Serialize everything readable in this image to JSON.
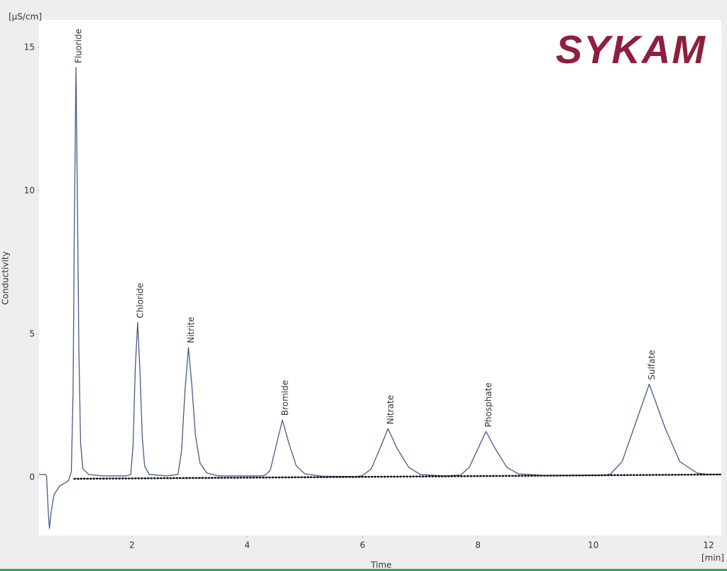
{
  "chart_data": {
    "type": "line",
    "logo": "SYKAM",
    "y_unit": "[µS/cm]",
    "y_label": "Conductivity",
    "x_label": "Time",
    "x_unit": "[min]",
    "xlim": [
      0.39,
      12.22
    ],
    "ylim": [
      -2.03,
      15.96
    ],
    "xticks": [
      2,
      4,
      6,
      8,
      10,
      12
    ],
    "yticks": [
      0,
      5,
      10,
      15
    ],
    "series": [
      {
        "color": "#4a5a8a",
        "x": [
          0.39,
          0.5,
          0.52,
          0.55,
          0.57,
          0.6,
          0.65,
          0.75,
          0.9,
          0.95,
          0.98,
          1.0,
          1.03,
          1.06,
          1.08,
          1.11,
          1.15,
          1.25,
          1.5,
          1.9,
          1.98,
          2.02,
          2.06,
          2.1,
          2.14,
          2.18,
          2.22,
          2.3,
          2.6,
          2.8,
          2.86,
          2.92,
          2.98,
          3.04,
          3.1,
          3.18,
          3.3,
          3.5,
          4.2,
          4.3,
          4.4,
          4.5,
          4.61,
          4.72,
          4.85,
          5.0,
          5.3,
          5.9,
          6.0,
          6.15,
          6.3,
          6.44,
          6.6,
          6.8,
          7.0,
          7.4,
          7.7,
          7.85,
          8.0,
          8.14,
          8.3,
          8.5,
          8.7,
          9.2,
          10.2,
          10.3,
          10.5,
          10.7,
          10.97,
          11.25,
          11.5,
          11.8,
          12.0,
          12.22
        ],
        "values": [
          0.1,
          0.1,
          0.05,
          -1.2,
          -1.78,
          -1.2,
          -0.6,
          -0.3,
          -0.12,
          0.2,
          3.0,
          8.3,
          14.3,
          8.7,
          4.5,
          1.2,
          0.3,
          0.1,
          0.05,
          0.05,
          0.1,
          1.1,
          3.9,
          5.4,
          3.7,
          1.4,
          0.4,
          0.1,
          0.05,
          0.1,
          0.9,
          3.0,
          4.53,
          3.2,
          1.5,
          0.5,
          0.15,
          0.05,
          0.05,
          0.06,
          0.25,
          1.1,
          2.0,
          1.2,
          0.4,
          0.12,
          0.04,
          0.03,
          0.06,
          0.3,
          1.0,
          1.7,
          1.0,
          0.35,
          0.1,
          0.05,
          0.08,
          0.35,
          1.0,
          1.6,
          1.0,
          0.35,
          0.12,
          0.06,
          0.07,
          0.12,
          0.55,
          1.7,
          3.25,
          1.7,
          0.55,
          0.15,
          0.1,
          0.09
        ]
      },
      {
        "color": "#111111",
        "dotted": true,
        "x": [
          1.0,
          12.2
        ],
        "values": [
          -0.05,
          0.1
        ]
      }
    ],
    "annotations": [
      {
        "text": "Fluoride",
        "x": 1.03,
        "y": 14.3
      },
      {
        "text": "Chloride",
        "x": 2.1,
        "y": 5.4
      },
      {
        "text": "Nitrite",
        "x": 2.98,
        "y": 4.53
      },
      {
        "text": "Bromide",
        "x": 4.61,
        "y": 2.0
      },
      {
        "text": "Nitrate",
        "x": 6.44,
        "y": 1.7
      },
      {
        "text": "Phosphate",
        "x": 8.14,
        "y": 1.6
      },
      {
        "text": "Sulfate",
        "x": 10.97,
        "y": 3.25
      }
    ]
  }
}
